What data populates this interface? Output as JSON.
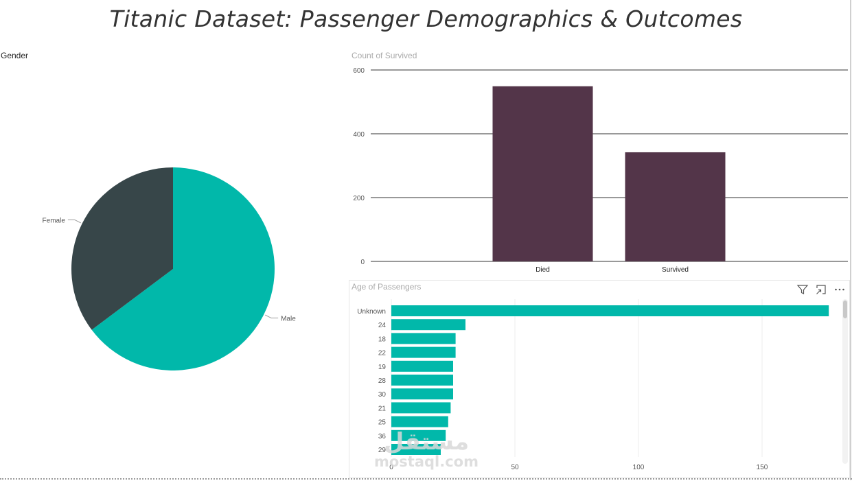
{
  "page": {
    "title": "Titanic Dataset: Passenger Demographics & Outcomes"
  },
  "colors": {
    "teal": "#01b8aa",
    "dark_slate": "#374649",
    "plum": "#533549",
    "gridline": "#333333",
    "light_grid": "#ececec"
  },
  "toolbar": {
    "icons": [
      "filter-icon",
      "focus-mode-icon",
      "more-options-icon"
    ]
  },
  "watermark": {
    "arabic": "مستقل",
    "latin": "mostaql.com"
  },
  "chart_data": [
    {
      "type": "pie",
      "title": "Gender",
      "categories": [
        "Male",
        "Female"
      ],
      "values": [
        577,
        314
      ],
      "series_colors": [
        "#01b8aa",
        "#374649"
      ]
    },
    {
      "type": "bar",
      "title": "Count of Survived",
      "categories": [
        "Died",
        "Survived"
      ],
      "values": [
        549,
        342
      ],
      "ylim": [
        0,
        600
      ],
      "yticks": [
        0,
        200,
        400,
        600
      ],
      "grid": true,
      "color": "#533549"
    },
    {
      "type": "bar",
      "orientation": "horizontal",
      "title": "Age of Passengers",
      "categories": [
        "Unknown",
        "24",
        "18",
        "22",
        "19",
        "28",
        "30",
        "21",
        "25",
        "36",
        "29"
      ],
      "values": [
        177,
        30,
        26,
        26,
        25,
        25,
        25,
        24,
        23,
        22,
        20
      ],
      "xlim": [
        0,
        185
      ],
      "xticks": [
        0,
        50,
        100,
        150
      ],
      "grid": true,
      "color": "#01b8aa"
    }
  ]
}
